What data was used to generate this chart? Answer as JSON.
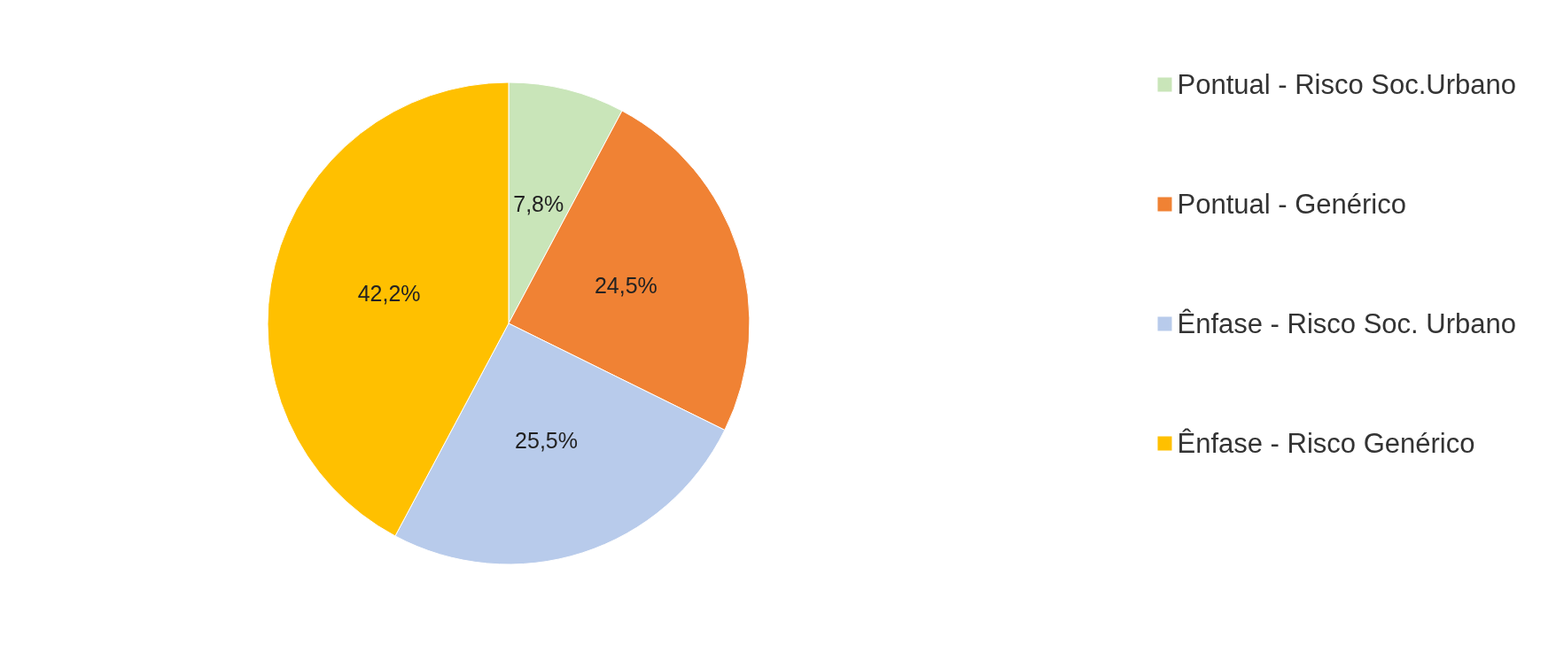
{
  "chart_data": {
    "type": "pie",
    "categories": [
      "Pontual - Risco Soc.Urbano",
      "Pontual - Genérico",
      "Ênfase - Risco Soc. Urbano",
      "Ênfase - Risco Genérico"
    ],
    "values": [
      7.8,
      24.5,
      25.5,
      42.2
    ],
    "colors": [
      "#c9e5b9",
      "#f08234",
      "#b8cbeb",
      "#ffc000"
    ],
    "value_labels": [
      "7,8%",
      "24,5%",
      "25,5%",
      "42,2%"
    ],
    "legend": "right"
  }
}
